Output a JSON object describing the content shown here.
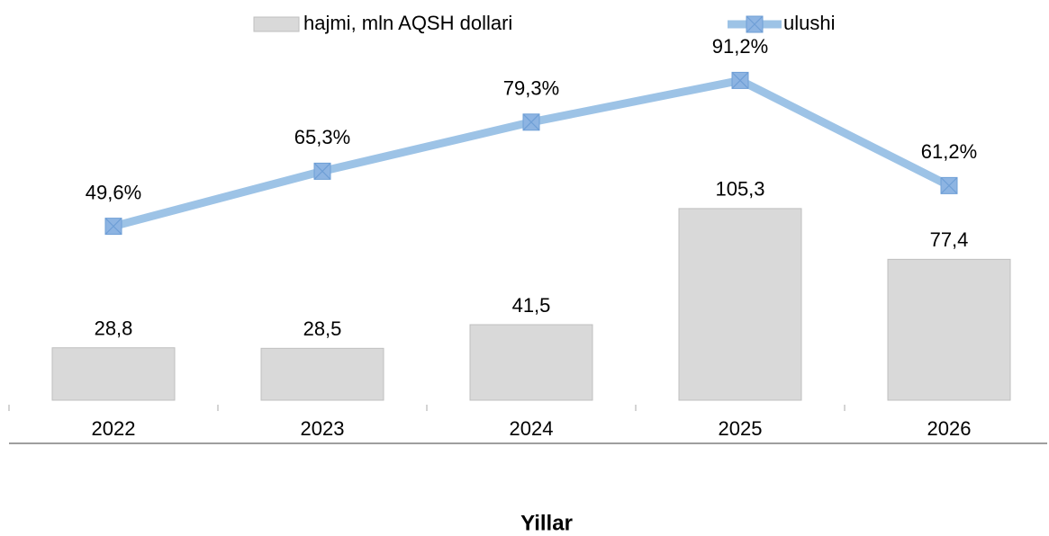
{
  "chart_data": {
    "type": "bar",
    "x_label": "Yillar",
    "categories": [
      "2022",
      "2023",
      "2024",
      "2025",
      "2026"
    ],
    "series": [
      {
        "name": "hajmi, mln AQSH dollari",
        "type": "bar",
        "color": "#d9d9d9",
        "values": [
          28.8,
          28.5,
          41.5,
          105.3,
          77.4
        ],
        "value_labels": [
          "28,8",
          "28,5",
          "41,5",
          "105,3",
          "77,4"
        ]
      },
      {
        "name": "ulushi",
        "type": "line",
        "axis": "y2",
        "color": "#9dc3e6",
        "values": [
          49.6,
          65.3,
          79.3,
          91.2,
          61.2
        ],
        "value_labels": [
          "49,6%",
          "65,3%",
          "79,3%",
          "91,2%",
          "61,2%"
        ]
      }
    ],
    "ylim": [
      0,
      210
    ],
    "y2lim": [
      0,
      109
    ],
    "legend": "top"
  }
}
